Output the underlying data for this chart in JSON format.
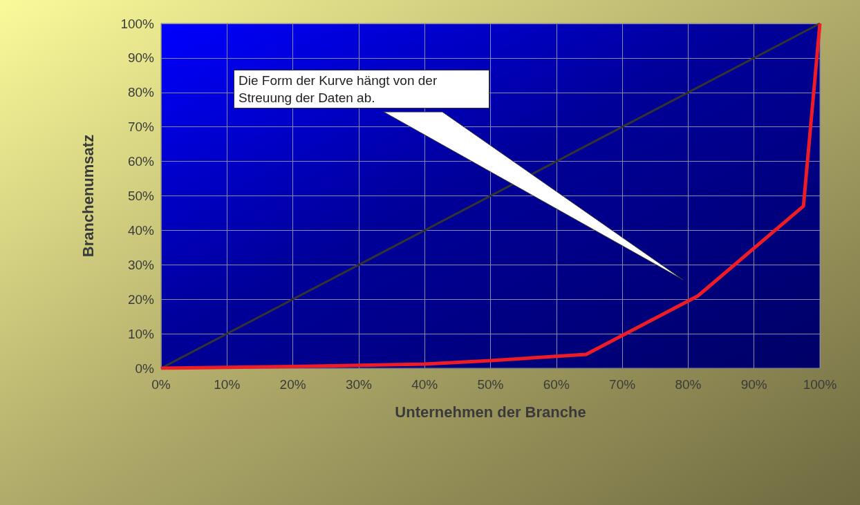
{
  "chart_data": {
    "type": "line",
    "xlabel": "Unternehmen der Branche",
    "ylabel": "Branchenumsatz",
    "annotations": [
      "Die Form der Kurve hängt von der Streuung der Daten ab."
    ],
    "series": [
      {
        "color": "#333333",
        "x": [
          0,
          100
        ],
        "values": [
          0,
          100
        ]
      },
      {
        "color": "#ee1c25",
        "x": [
          0,
          20,
          40,
          50,
          64.5,
          81.5,
          97.5,
          100
        ],
        "values": [
          0,
          0.5,
          1.2,
          2.2,
          4,
          21,
          47,
          100
        ]
      }
    ],
    "xlim": [
      0,
      100
    ],
    "xticks": [
      {
        "value": 0,
        "label": "0%"
      },
      {
        "value": 10,
        "label": "10%"
      },
      {
        "value": 20,
        "label": "20%"
      },
      {
        "value": 30,
        "label": "30%"
      },
      {
        "value": 40,
        "label": "40%"
      },
      {
        "value": 50,
        "label": "50%"
      },
      {
        "value": 60,
        "label": "60%"
      },
      {
        "value": 70,
        "label": "70%"
      },
      {
        "value": 80,
        "label": "80%"
      },
      {
        "value": 90,
        "label": "90%"
      },
      {
        "value": 100,
        "label": "100%"
      }
    ],
    "ylim": [
      0,
      100
    ],
    "yticks": [
      {
        "value": 0,
        "label": "0%"
      },
      {
        "value": 10,
        "label": "10%"
      },
      {
        "value": 20,
        "label": "20%"
      },
      {
        "value": 30,
        "label": "30%"
      },
      {
        "value": 40,
        "label": "40%"
      },
      {
        "value": 50,
        "label": "50%"
      },
      {
        "value": 60,
        "label": "60%"
      },
      {
        "value": 70,
        "label": "70%"
      },
      {
        "value": 80,
        "label": "80%"
      },
      {
        "value": 90,
        "label": "90%"
      },
      {
        "value": 100,
        "label": "100%"
      }
    ],
    "grid": true,
    "marker": "none",
    "line_style": "solid"
  }
}
